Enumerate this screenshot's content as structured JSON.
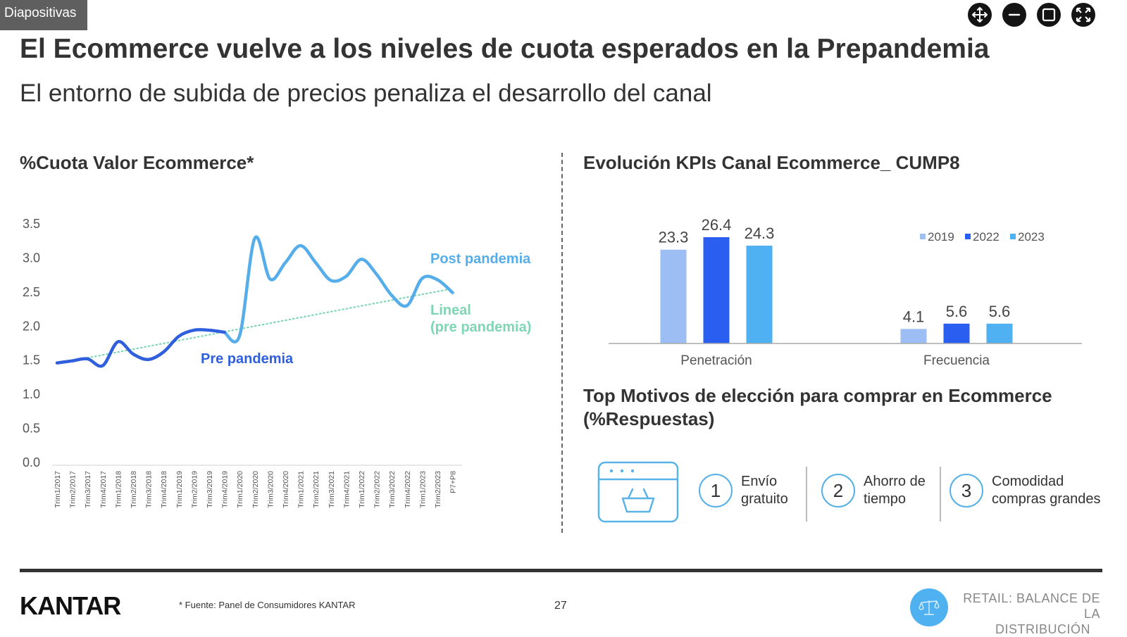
{
  "window": {
    "tab_label": "Diapositivas",
    "controls": [
      {
        "name": "move-icon",
        "label": "move"
      },
      {
        "name": "minimize-icon",
        "label": "minimize"
      },
      {
        "name": "maximize-icon",
        "label": "maximize"
      },
      {
        "name": "fullscreen-icon",
        "label": "fullscreen"
      }
    ]
  },
  "slide": {
    "title": "El Ecommerce vuelve a los niveles de cuota esperados en la Prepandemia",
    "subtitle": "El entorno de subida de precios penaliza el desarrollo del canal",
    "left_section_title": "%Cuota Valor Ecommerce*",
    "right_section_title": "Evolución KPIs Canal Ecommerce_ CUMP8",
    "motivos_title": "Top Motivos de elección para comprar en Ecommerce (%Respuestas)",
    "motivos": [
      {
        "number": "1",
        "text_line1": "Envío",
        "text_line2": "gratuito"
      },
      {
        "number": "2",
        "text_line1": "Ahorro de",
        "text_line2": "tiempo"
      },
      {
        "number": "3",
        "text_line1": "Comodidad",
        "text_line2": "compras grandes"
      }
    ],
    "motivos_icon": "online-shopping-basket-icon"
  },
  "footer": {
    "logo": "KANTAR",
    "source_note": "* Fuente: Panel de Consumidores KANTAR",
    "page_number": "27",
    "retail_line1": "RETAIL: BALANCE DE LA",
    "retail_line2": "DISTRIBUCIÓN",
    "retail_icon": "scale-icon"
  },
  "colors": {
    "pre_pandemia": "#2f5fdc",
    "post_pandemia": "#55aeea",
    "lineal": "#7ed6b4",
    "bar_2019": "#9dbef5",
    "bar_2022": "#2a5ef0",
    "bar_2023": "#4fb0f2",
    "text_dark": "#333333"
  },
  "chart_data": [
    {
      "type": "line",
      "title": "%Cuota Valor Ecommerce*",
      "xlabel": "",
      "ylabel": "",
      "ylim": [
        0,
        3.5
      ],
      "yticks": [
        "0.0",
        "0.5",
        "1.0",
        "1.5",
        "2.0",
        "2.5",
        "3.0",
        "3.5"
      ],
      "grid": false,
      "categories": [
        "Trim1/2017",
        "Trim2/2017",
        "Trim3/2017",
        "Trim4/2017",
        "Trim1/2018",
        "Trim2/2018",
        "Trim3/2018",
        "Trim4/2018",
        "Trim1/2019",
        "Trim2/2019",
        "Trim3/2019",
        "Trim4/2019",
        "Trim1/2020",
        "Trim2/2020",
        "Trim3/2020",
        "Trim4/2020",
        "Trim1/2021",
        "Trim2/2021",
        "Trim3/2021",
        "Trim4/2021",
        "Trim1/2022",
        "Trim2/2022",
        "Trim3/2022",
        "Trim4/2022",
        "Trim1/2023",
        "Trim2/2023",
        "P7+P8"
      ],
      "series": [
        {
          "name": "Pre pandemia",
          "values": [
            1.46,
            1.49,
            1.52,
            1.42,
            1.77,
            1.59,
            1.51,
            1.62,
            1.85,
            1.94,
            1.94,
            1.91,
            null,
            null,
            null,
            null,
            null,
            null,
            null,
            null,
            null,
            null,
            null,
            null,
            null,
            null,
            null
          ]
        },
        {
          "name": "Post pandemia",
          "values": [
            null,
            null,
            null,
            null,
            null,
            null,
            null,
            null,
            null,
            null,
            null,
            1.91,
            1.86,
            3.29,
            2.69,
            2.93,
            3.18,
            2.93,
            2.67,
            2.73,
            2.98,
            2.76,
            2.45,
            2.3,
            2.7,
            2.68,
            2.49
          ]
        },
        {
          "name": "Lineal (pre pandemia)",
          "style": "dotted",
          "start": 1.45,
          "end": 2.55
        }
      ],
      "annotations": [
        {
          "text": "Pre pandemia",
          "series": "Pre pandemia"
        },
        {
          "text": "Post pandemia",
          "series": "Post pandemia"
        },
        {
          "text_line1": "Lineal",
          "text_line2": "(pre pandemia)",
          "series": "Lineal (pre pandemia)"
        }
      ]
    },
    {
      "type": "bar",
      "title": "Evolución KPIs Canal Ecommerce_ CUMP8",
      "categories": [
        "Penetración",
        "Frecuencia"
      ],
      "series": [
        {
          "name": "2019",
          "values": [
            23.3,
            4.1
          ]
        },
        {
          "name": "2022",
          "values": [
            26.4,
            5.6
          ]
        },
        {
          "name": "2023",
          "values": [
            24.3,
            5.6
          ]
        }
      ],
      "scale_note": "each category uses its own scale",
      "category_max": [
        26.4,
        18
      ],
      "legend": "top-right",
      "data_labels": true
    }
  ]
}
